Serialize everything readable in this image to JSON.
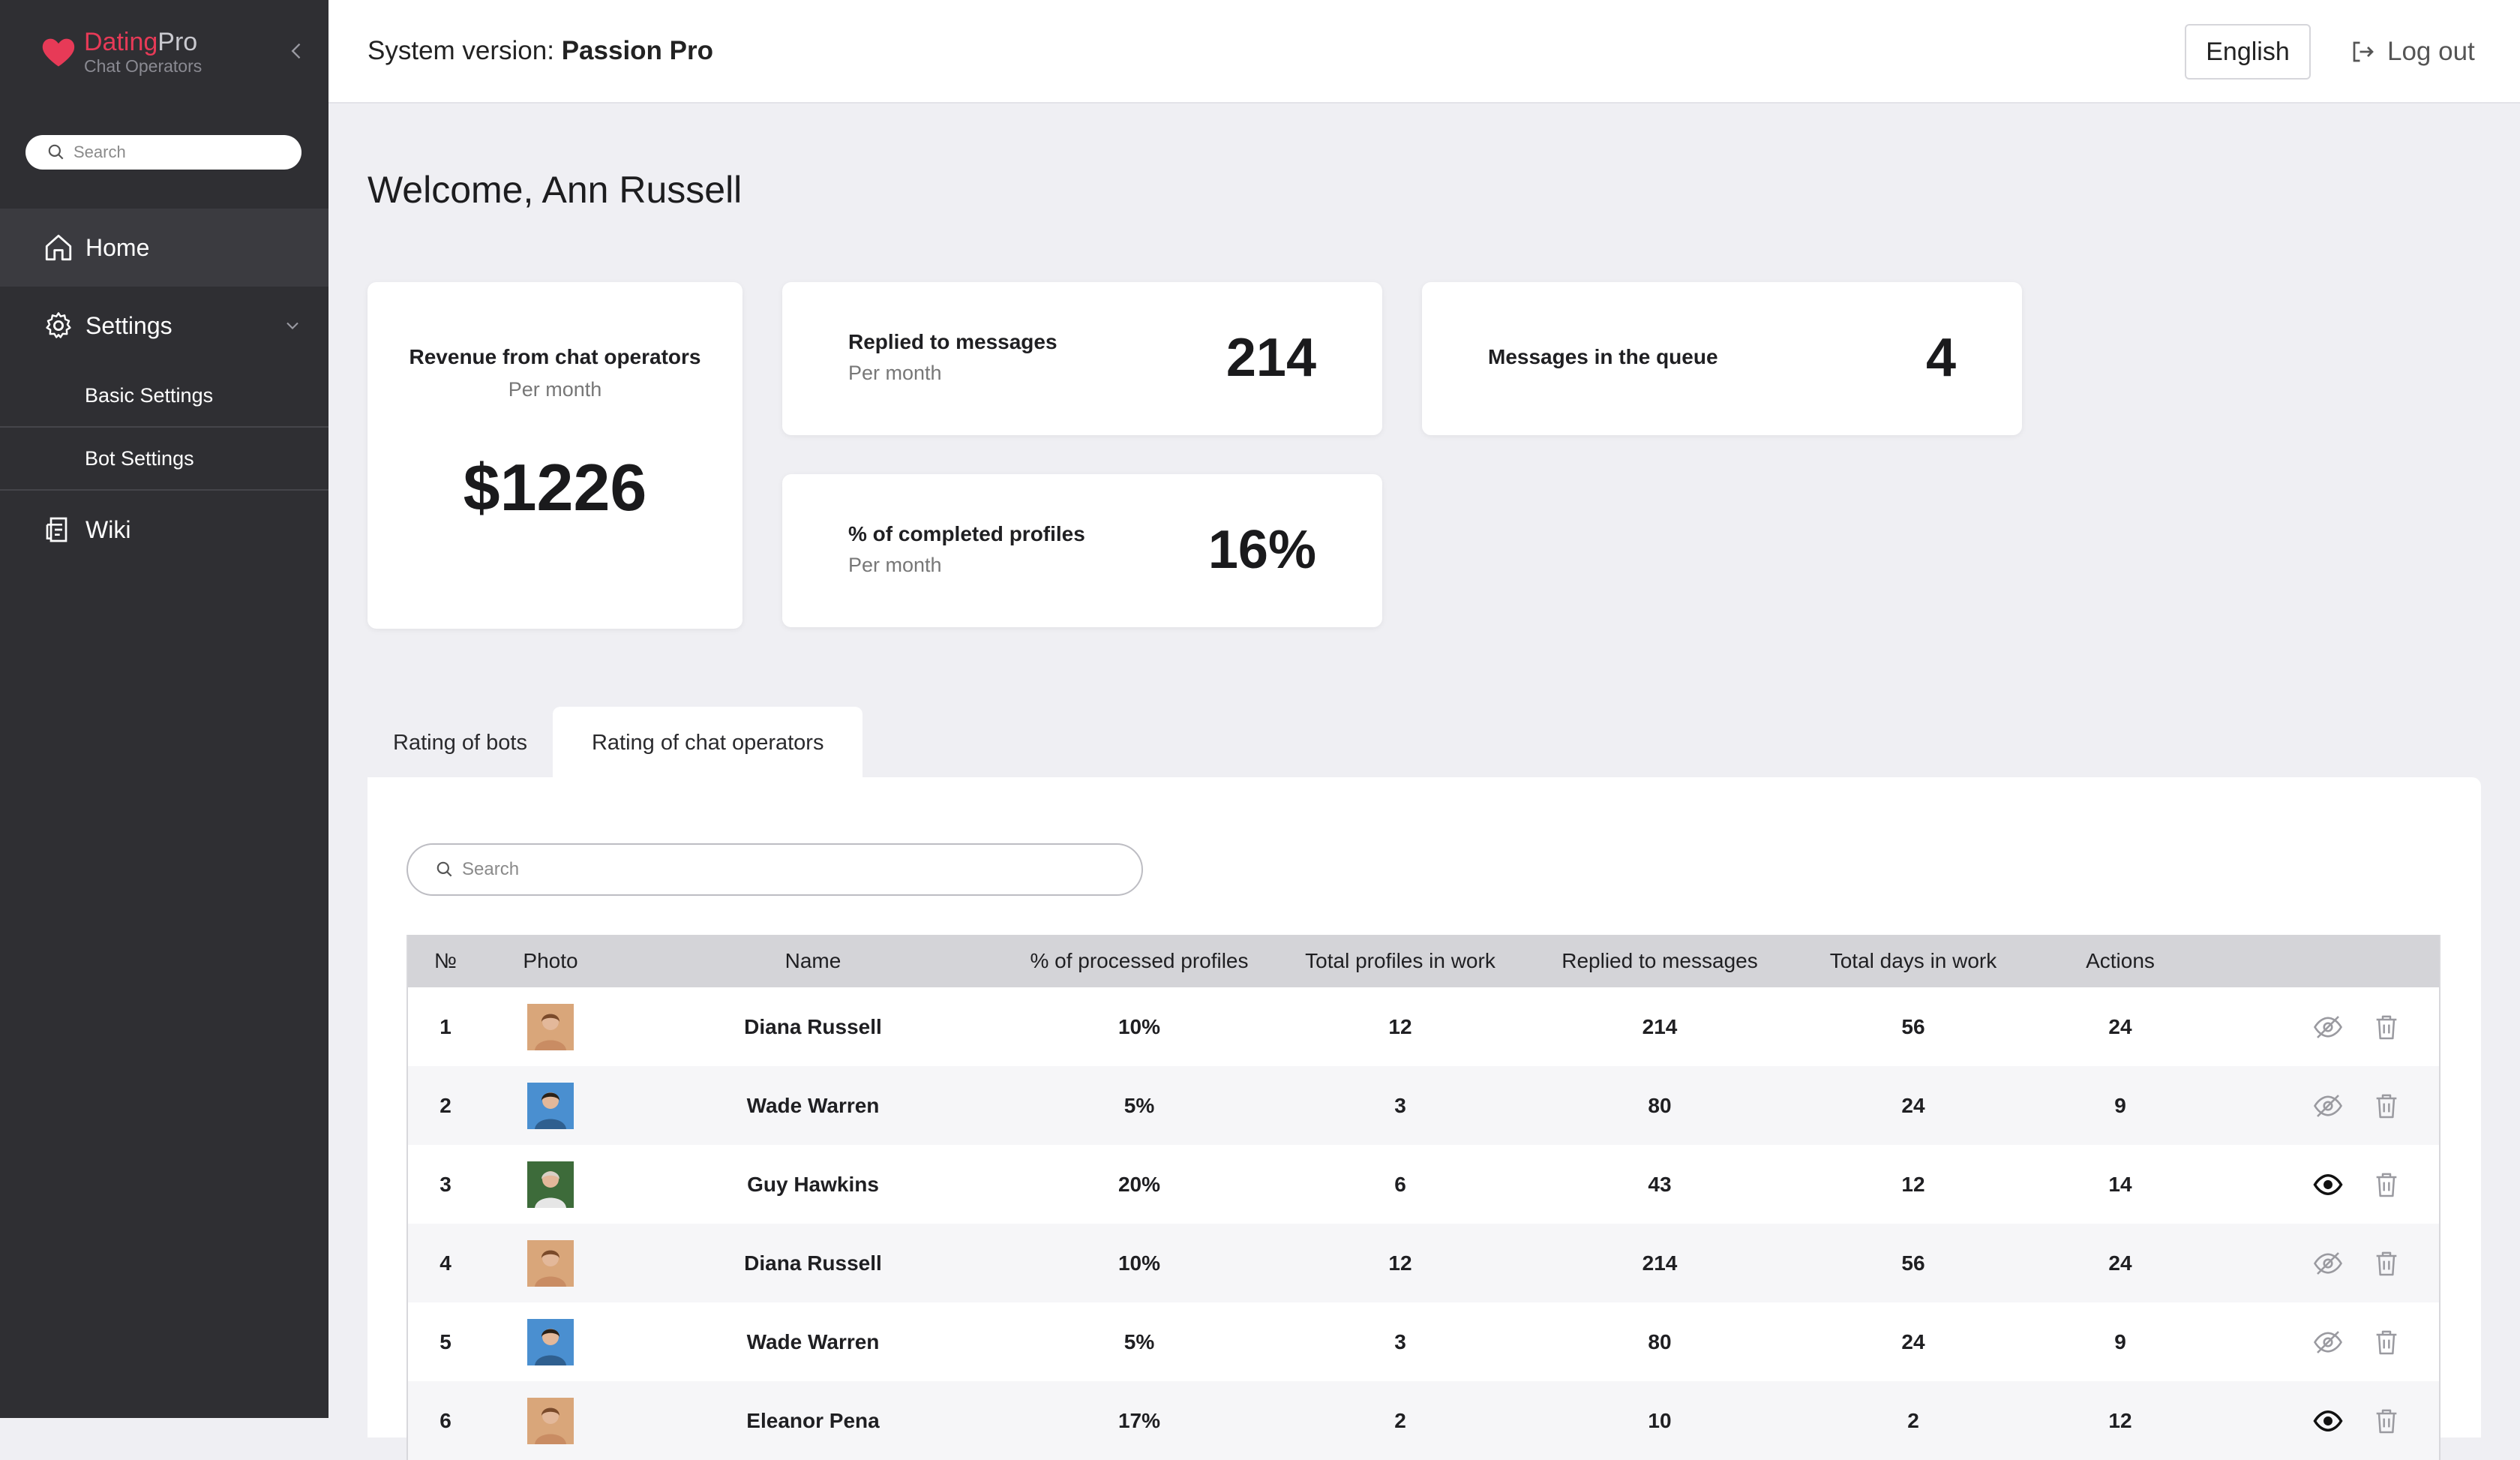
{
  "sidebar": {
    "brand_main": "Dating",
    "brand_accent": "Pro",
    "brand_sub": "Chat Operators",
    "search_placeholder": "Search",
    "items": [
      {
        "label": "Home",
        "icon": "home-icon"
      },
      {
        "label": "Settings",
        "icon": "gear-icon"
      },
      {
        "label": "Wiki",
        "icon": "document-icon"
      }
    ],
    "settings_sub": [
      "Basic Settings",
      "Bot Settings"
    ]
  },
  "header": {
    "system_label": "System version: ",
    "system_value": "Passion Pro",
    "language": "English",
    "logout": "Log out"
  },
  "welcome": "Welcome, Ann Russell",
  "stats": {
    "revenue": {
      "title": "Revenue from chat operators",
      "sub": "Per month",
      "value": "$1226"
    },
    "replied": {
      "title": "Replied to messages",
      "sub": "Per month",
      "value": "214"
    },
    "completed": {
      "title": "% of completed profiles",
      "sub": "Per month",
      "value": "16%"
    },
    "queue": {
      "title": "Messages in the queue",
      "value": "4"
    }
  },
  "tabs": [
    "Rating of bots",
    "Rating of chat operators"
  ],
  "table": {
    "search_placeholder": "Search",
    "headers": [
      "№",
      "Photo",
      "Name",
      "% of processed profiles",
      "Total profiles in work",
      "Replied to messages",
      "Total days in work",
      "Actions"
    ],
    "rows": [
      {
        "no": "1",
        "name": "Diana Russell",
        "pp": "10%",
        "tp": "12",
        "rm": "214",
        "td": "56",
        "act": "24",
        "visible": false
      },
      {
        "no": "2",
        "name": "Wade Warren",
        "pp": "5%",
        "tp": "3",
        "rm": "80",
        "td": "24",
        "act": "9",
        "visible": false
      },
      {
        "no": "3",
        "name": "Guy Hawkins",
        "pp": "20%",
        "tp": "6",
        "rm": "43",
        "td": "12",
        "act": "14",
        "visible": true
      },
      {
        "no": "4",
        "name": "Diana Russell",
        "pp": "10%",
        "tp": "12",
        "rm": "214",
        "td": "56",
        "act": "24",
        "visible": false
      },
      {
        "no": "5",
        "name": "Wade Warren",
        "pp": "5%",
        "tp": "3",
        "rm": "80",
        "td": "24",
        "act": "9",
        "visible": false
      },
      {
        "no": "6",
        "name": "Eleanor Pena",
        "pp": "17%",
        "tp": "2",
        "rm": "10",
        "td": "2",
        "act": "12",
        "visible": true
      }
    ]
  },
  "colors": {
    "brand": "#e73a57",
    "sidebar": "#2f2f33",
    "page_bg": "#efeff3"
  }
}
